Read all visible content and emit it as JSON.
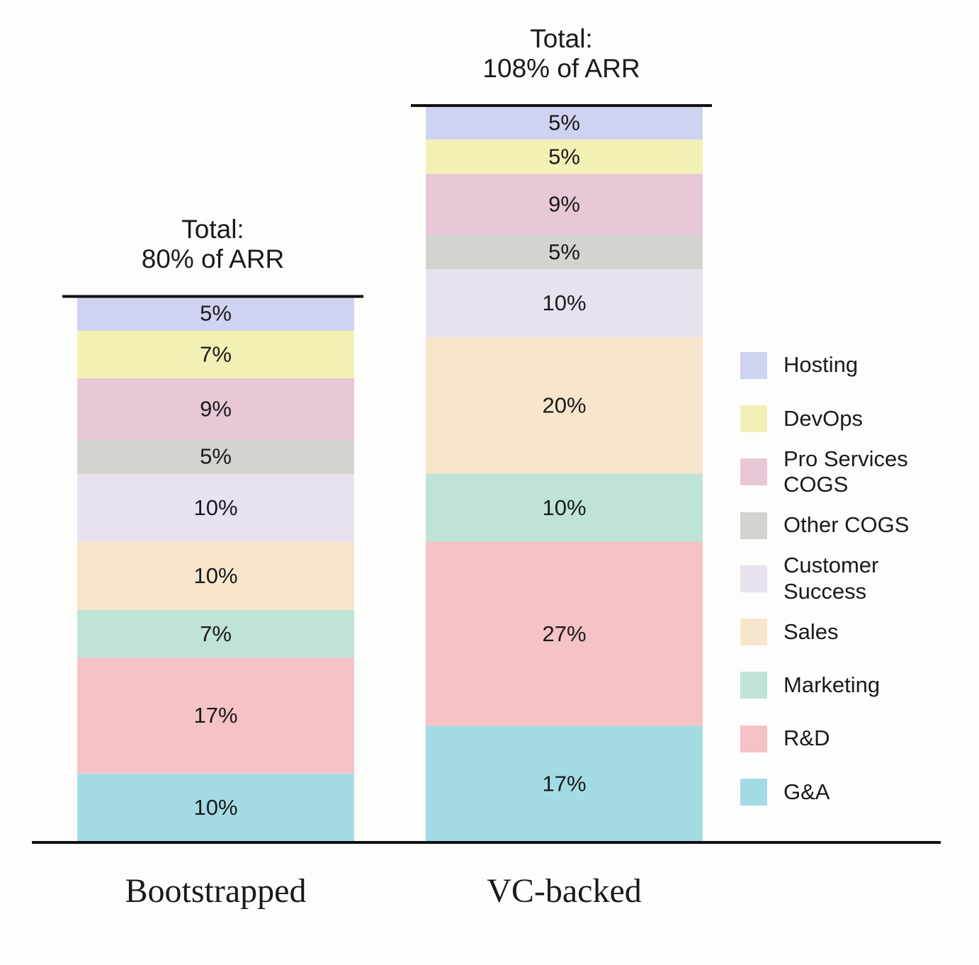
{
  "chart_data": {
    "type": "stacked-bar",
    "categories": [
      "Bootstrapped",
      "VC-backed"
    ],
    "series": [
      {
        "name": "G&A",
        "color": "#a3dbe4",
        "values": [
          10,
          17
        ],
        "value_labels": [
          "10%",
          "17%"
        ]
      },
      {
        "name": "R&D",
        "color": "#f5c2c6",
        "values": [
          17,
          27
        ],
        "value_labels": [
          "17%",
          "27%"
        ]
      },
      {
        "name": "Marketing",
        "color": "#bfe3d6",
        "values": [
          7,
          10
        ],
        "value_labels": [
          "7%",
          "10%"
        ]
      },
      {
        "name": "Sales",
        "color": "#f7e6cc",
        "values": [
          10,
          20
        ],
        "value_labels": [
          "10%",
          "20%"
        ]
      },
      {
        "name": "Customer Success",
        "color": "#e8e2ef",
        "values": [
          10,
          10
        ],
        "value_labels": [
          "10%",
          "10%"
        ]
      },
      {
        "name": "Other COGS",
        "color": "#d3d4d0",
        "values": [
          5,
          5
        ],
        "value_labels": [
          "5%",
          "5%"
        ]
      },
      {
        "name": "Pro Services COGS",
        "color": "#e8c8d6",
        "values": [
          9,
          9
        ],
        "value_labels": [
          "9%",
          "9%"
        ]
      },
      {
        "name": "DevOps",
        "color": "#f3f0b6",
        "values": [
          7,
          5
        ],
        "value_labels": [
          "7%",
          "5%"
        ]
      },
      {
        "name": "Hosting",
        "color": "#cfd2f0",
        "values": [
          5,
          5
        ],
        "value_labels": [
          "5%",
          "5%"
        ]
      }
    ],
    "total_prefix": "Total:",
    "totals": [
      80,
      108
    ],
    "total_labels": [
      "80% of ARR",
      "108% of ARR"
    ],
    "legend": "right"
  }
}
